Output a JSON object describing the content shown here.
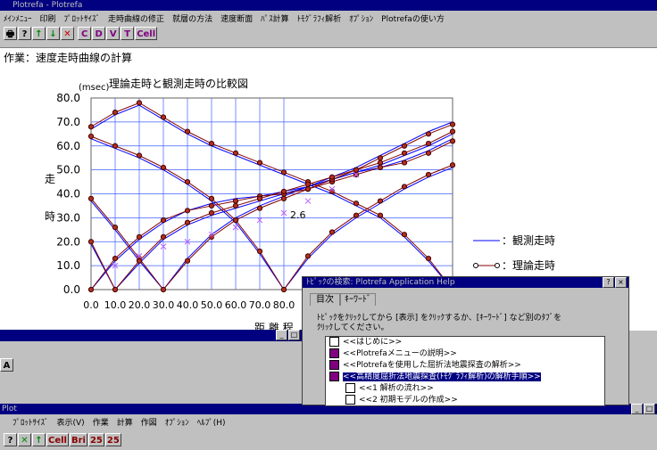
{
  "app_title": "Plotrefa - Plotrefa",
  "menu": [
    "ﾒｲﾝﾒﾆｭｰ",
    "印刷",
    "ﾌﾟﾛｯﾄｻｲｽﾞ",
    "走時曲線の修正",
    "就層の方法",
    "速度断面",
    "ﾊﾟｽ計算",
    "ﾄﾓｸﾞﾗﾌｨ解析",
    "ｵﾌﾟｼｮﾝ",
    "Plotrefaの使い方"
  ],
  "toolbar": [
    "C",
    "D",
    "V",
    "T",
    "Cell"
  ],
  "task_label": "作業：速度走時曲線の計算",
  "chart_data": {
    "type": "line",
    "title": "理論走時と観測走時の比較図",
    "y_unit": "(msec)",
    "y_label": [
      "走",
      "時"
    ],
    "x_label": "距 離 程",
    "annotation": "2.6",
    "x": [
      0,
      10,
      20,
      30,
      40,
      50,
      60,
      70,
      80,
      90,
      100,
      110,
      120,
      130,
      140,
      150
    ],
    "xlim": [
      0,
      150
    ],
    "ylim": [
      0,
      80
    ],
    "xticks": [
      {
        "value": 0,
        "label": "0.0"
      },
      {
        "value": 10,
        "label": "10.0"
      },
      {
        "value": 20,
        "label": "20.0"
      },
      {
        "value": 30,
        "label": "30.0"
      },
      {
        "value": 40,
        "label": "40.0"
      },
      {
        "value": 50,
        "label": "50.0"
      },
      {
        "value": 60,
        "label": "60.0"
      },
      {
        "value": 70,
        "label": "70.0"
      },
      {
        "value": 80,
        "label": "80.0"
      }
    ],
    "yticks": [
      {
        "value": 0,
        "label": "0.0"
      },
      {
        "value": 10,
        "label": "10.0"
      },
      {
        "value": 20,
        "label": "20.0"
      },
      {
        "value": 30,
        "label": "30.0"
      },
      {
        "value": 40,
        "label": "40.0"
      },
      {
        "value": 50,
        "label": "50.0"
      },
      {
        "value": 60,
        "label": "60.0"
      },
      {
        "value": 70,
        "label": "70.0"
      },
      {
        "value": 80,
        "label": "80.0"
      }
    ],
    "grid": true,
    "series": [
      {
        "name": "：観測走時",
        "color": "#0000ff",
        "marker": "none",
        "curves": [
          [
            0,
            12,
            21,
            28,
            33,
            36,
            38,
            39,
            41,
            43,
            46,
            49,
            51,
            54,
            58,
            63
          ],
          [
            37,
            25,
            12,
            0,
            13,
            23,
            30,
            35,
            39,
            43,
            47,
            51,
            56,
            61,
            66,
            70
          ],
          [
            67,
            73,
            77,
            71,
            65,
            60,
            56,
            52,
            48,
            44,
            40,
            35,
            30,
            22,
            12,
            0
          ],
          [
            63,
            59,
            55,
            50,
            44,
            37,
            28,
            15,
            0,
            13,
            23,
            30,
            36,
            42,
            47,
            51
          ],
          [
            19,
            0,
            11,
            21,
            27,
            31,
            34,
            37,
            40,
            43,
            46,
            49,
            52,
            56,
            60,
            65
          ]
        ]
      },
      {
        "name": "：理論走時",
        "color": "#800000",
        "marker": "circle",
        "curves": [
          [
            0,
            13,
            22,
            29,
            33,
            35,
            37,
            39,
            40,
            42,
            45,
            48,
            51,
            53,
            57,
            62
          ],
          [
            38,
            26,
            13,
            0,
            12,
            22,
            29,
            34,
            38,
            42,
            46,
            50,
            55,
            60,
            65,
            69
          ],
          [
            68,
            74,
            78,
            72,
            66,
            61,
            57,
            53,
            49,
            45,
            41,
            36,
            31,
            23,
            13,
            0
          ],
          [
            64,
            60,
            56,
            51,
            45,
            38,
            29,
            16,
            0,
            14,
            24,
            31,
            37,
            43,
            48,
            52
          ],
          [
            20,
            0,
            12,
            22,
            28,
            32,
            35,
            38,
            41,
            44,
            47,
            50,
            53,
            57,
            61,
            66
          ]
        ]
      },
      {
        "color": "#c060ff",
        "marker": "x",
        "curves": [
          [
            null,
            10,
            14,
            18,
            20,
            23,
            26,
            29,
            32,
            37,
            42,
            48,
            null,
            null,
            null,
            null
          ]
        ]
      }
    ]
  },
  "lower_toolbar": [
    "A"
  ],
  "help": {
    "title": "ﾄﾋﾟｯｸの検索: Plotrefa Application Help",
    "tabs": [
      "目次",
      "ｷｰﾜｰﾄﾞ"
    ],
    "instructions": [
      "ﾄﾋﾟｯｸをｸﾘｯｸしてから [表示] をｸﾘｯｸするか、[ｷｰﾜｰﾄﾞ] など別のﾀﾌﾞを",
      "ｸﾘｯｸしてください。"
    ],
    "items": [
      "<<はじめに>>",
      "<<Plotrefaメニューの説明>>",
      "<<Plotrefaを使用した屈折法地震探査の解析>>",
      "<<高精度屈折法地震探査(ﾄﾓｸﾞﾗﾌｨ解析)の解析手順>>",
      "<<1 解析の流れ>>",
      "<<2 初期モデルの作成>>"
    ]
  },
  "bottom": {
    "title": "Plot",
    "menu": [
      "ﾌﾟﾛｯﾄｻｲｽﾞ",
      "表示(V)",
      "作業",
      "計算",
      "作図",
      "ｵﾌﾟｼｮﾝ",
      "ﾍﾙﾌﾟ(H)"
    ],
    "toolbar": [
      "Cell",
      "Bri",
      "25",
      "25"
    ]
  }
}
